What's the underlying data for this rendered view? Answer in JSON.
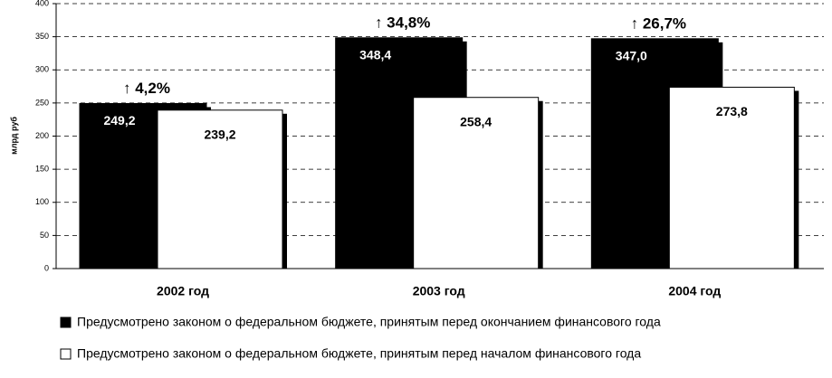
{
  "chart_data": {
    "type": "bar",
    "y_label": "млрд руб",
    "categories": [
      "2002 год",
      "2003 год",
      "2004 год"
    ],
    "series": [
      {
        "name": "Предусмотрено законом о федеральном бюджете, принятым перед окончанием финансового года",
        "color": "#000000",
        "values": [
          249.2,
          348.4,
          347.0
        ],
        "value_labels": [
          "249,2",
          "348,4",
          "347,0"
        ]
      },
      {
        "name": "Предусмотрено законом о федеральном бюджете, принятым перед началом финансового года",
        "color": "#ffffff",
        "values": [
          239.2,
          258.4,
          273.8
        ],
        "value_labels": [
          "239,2",
          "258,4",
          "273,8"
        ]
      }
    ],
    "annotations": [
      "↑ 4,2%",
      "↑ 34,8%",
      "↑ 26,7%"
    ],
    "ylim": [
      0,
      400
    ],
    "yticks": [
      0,
      50,
      100,
      150,
      200,
      250,
      300,
      350,
      400
    ],
    "grid": true
  }
}
